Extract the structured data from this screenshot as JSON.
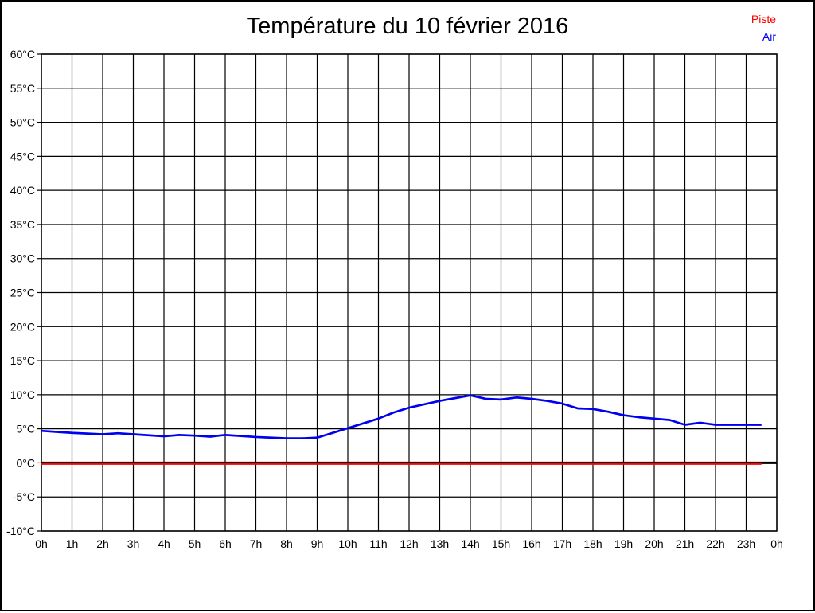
{
  "chart_data": {
    "type": "line",
    "title": "Température du 10 février 2016",
    "xlabel": "",
    "ylabel": "",
    "x_unit": "hour",
    "xlim": [
      0,
      24
    ],
    "ylim": [
      -10,
      60
    ],
    "y_step": 5,
    "grid": true,
    "legend_position": "top-right",
    "x_tick_labels": [
      "0h",
      "1h",
      "2h",
      "3h",
      "4h",
      "5h",
      "6h",
      "7h",
      "8h",
      "9h",
      "10h",
      "11h",
      "12h",
      "13h",
      "14h",
      "15h",
      "16h",
      "17h",
      "18h",
      "19h",
      "20h",
      "21h",
      "22h",
      "23h",
      "0h"
    ],
    "y_tick_labels": [
      "-10°C",
      "-5°C",
      "0°C",
      "5°C",
      "10°C",
      "15°C",
      "20°C",
      "25°C",
      "30°C",
      "35°C",
      "40°C",
      "45°C",
      "50°C",
      "55°C",
      "60°C"
    ],
    "x": [
      0,
      0.5,
      1,
      1.5,
      2,
      2.5,
      3,
      3.5,
      4,
      4.5,
      5,
      5.5,
      6,
      6.5,
      7,
      7.5,
      8,
      8.5,
      9,
      9.5,
      10,
      10.5,
      11,
      11.5,
      12,
      12.5,
      13,
      13.5,
      14,
      14.5,
      15,
      15.5,
      16,
      16.5,
      17,
      17.5,
      18,
      18.5,
      19,
      19.5,
      20,
      20.5,
      21,
      21.5,
      22,
      22.5,
      23,
      23.5
    ],
    "series": [
      {
        "name": "Piste",
        "color": "#ff0000",
        "values": [
          0,
          0,
          0,
          0,
          0,
          0,
          0,
          0,
          0,
          0,
          0,
          0,
          0,
          0,
          0,
          0,
          0,
          0,
          0,
          0,
          0,
          0,
          0,
          0,
          0,
          0,
          0,
          0,
          0,
          0,
          0,
          0,
          0,
          0,
          0,
          0,
          0,
          0,
          0,
          0,
          0,
          0,
          0,
          0,
          0,
          0,
          0,
          0
        ]
      },
      {
        "name": "Air",
        "color": "#0000f0",
        "values": [
          4.7,
          4.55,
          4.4,
          4.3,
          4.2,
          4.35,
          4.2,
          4.05,
          3.9,
          4.1,
          4.0,
          3.85,
          4.1,
          3.95,
          3.8,
          3.7,
          3.6,
          3.6,
          3.7,
          4.4,
          5.1,
          5.8,
          6.5,
          7.4,
          8.1,
          8.6,
          9.1,
          9.5,
          9.9,
          9.4,
          9.3,
          9.6,
          9.4,
          9.1,
          8.7,
          8.0,
          7.9,
          7.5,
          7.0,
          6.7,
          6.5,
          6.3,
          5.6,
          5.9,
          5.6,
          5.6,
          5.6,
          5.6
        ]
      }
    ]
  },
  "legend": {
    "items": [
      {
        "label": "Piste",
        "color": "#ff0000"
      },
      {
        "label": "Air",
        "color": "#0000f0"
      }
    ]
  }
}
